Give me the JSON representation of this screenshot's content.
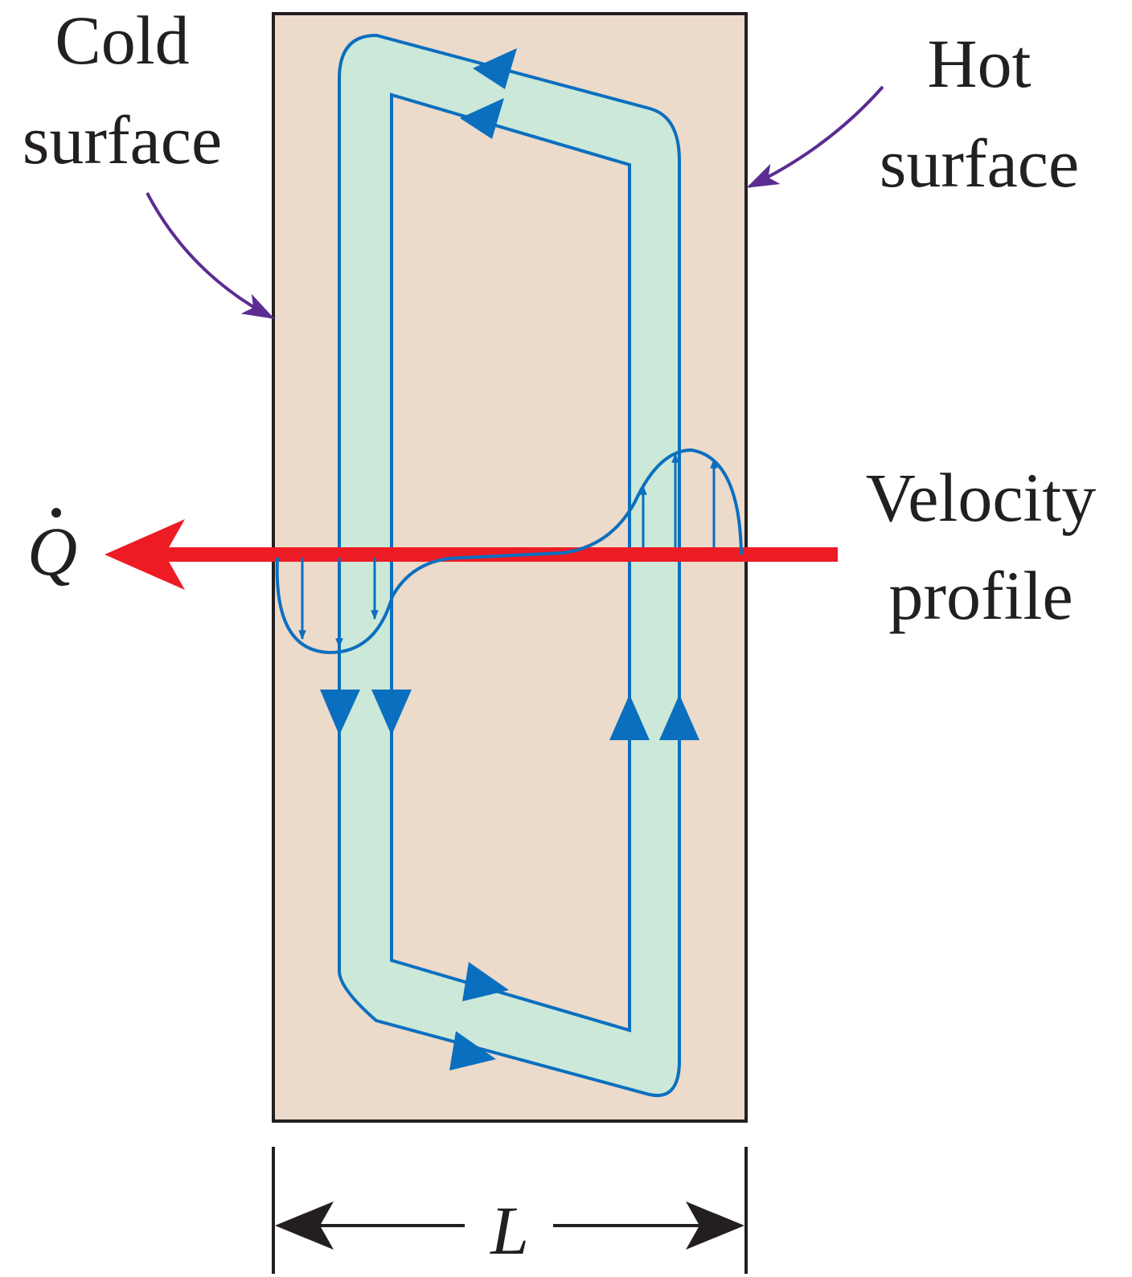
{
  "labels": {
    "cold_line1": "Cold",
    "cold_line2": "surface",
    "hot_line1": "Hot",
    "hot_line2": "surface",
    "velocity_line1": "Velocity",
    "velocity_line2": "profile",
    "heat_symbol": "Q",
    "width_symbol": "L"
  },
  "colors": {
    "enclosure_fill": "#ecdacb",
    "enclosure_stroke": "#231f20",
    "loop_fill": "#cce8d8",
    "flow_blue": "#0b6fbf",
    "heat_red": "#ed1c24",
    "pointer_purple": "#5b2c91",
    "text": "#231f20"
  }
}
